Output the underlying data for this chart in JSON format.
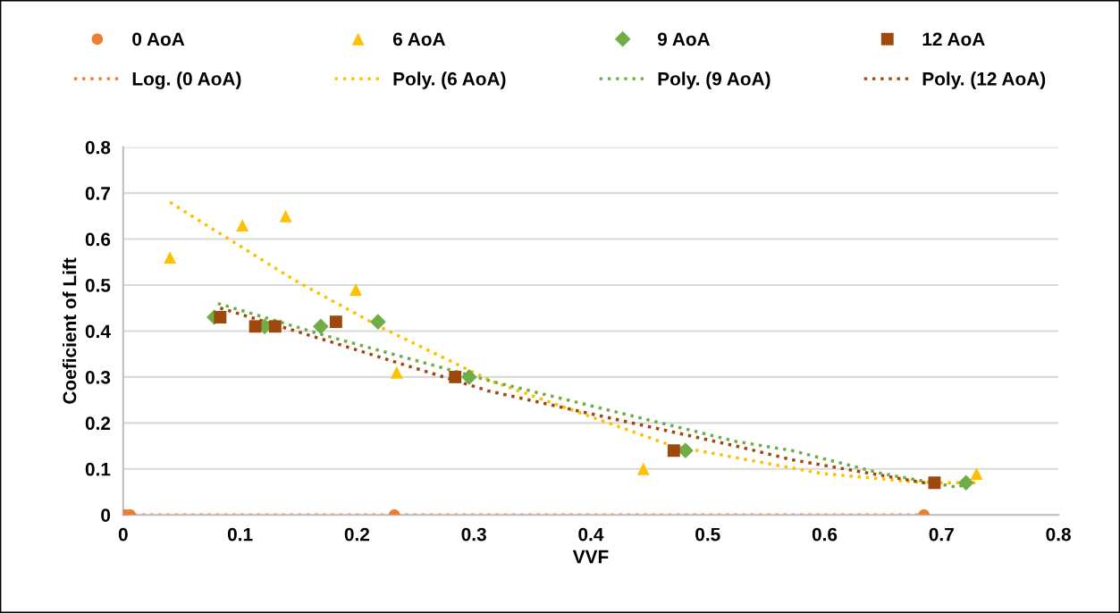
{
  "chart_data": {
    "type": "scatter",
    "xlabel": "VVF",
    "ylabel": "Coeficient of Lift",
    "xlim": [
      0,
      0.8
    ],
    "xticks": [
      {
        "value": 0,
        "label": "0"
      },
      0.1,
      0.2,
      0.3,
      0.4,
      0.5,
      0.6,
      0.7,
      0.8
    ],
    "ylim": [
      0,
      0.8
    ],
    "yticks": [
      {
        "value": 0,
        "label": "0"
      },
      0.1,
      0.2,
      0.3,
      0.4,
      0.5,
      0.6,
      0.7,
      0.8
    ],
    "grid": "y",
    "legend": "top",
    "series": [
      {
        "name": "0 AoA",
        "color": "#ed7d31",
        "marker": "circle",
        "x": [
          0,
          0.002,
          0.006,
          0.232,
          0.685
        ],
        "values": [
          0,
          0,
          0,
          0,
          0
        ]
      },
      {
        "name": "6 AoA",
        "color": "#ffc000",
        "marker": "triangle",
        "x": [
          0.04,
          0.102,
          0.139,
          0.199,
          0.234,
          0.445,
          0.73
        ],
        "values": [
          0.56,
          0.63,
          0.65,
          0.49,
          0.31,
          0.1,
          0.09
        ]
      },
      {
        "name": "9 AoA",
        "color": "#70ad47",
        "marker": "diamond",
        "x": [
          0.078,
          0.121,
          0.169,
          0.218,
          0.296,
          0.481,
          0.721
        ],
        "values": [
          0.43,
          0.41,
          0.41,
          0.42,
          0.3,
          0.14,
          0.07
        ]
      },
      {
        "name": "12 AoA",
        "color": "#9e480e",
        "marker": "square",
        "x": [
          0.083,
          0.113,
          0.13,
          0.182,
          0.284,
          0.471,
          0.694
        ],
        "values": [
          0.43,
          0.41,
          0.41,
          0.42,
          0.3,
          0.14,
          0.07
        ]
      },
      {
        "name": "Log. (0 AoA)",
        "type": "line",
        "line_style": "dotted",
        "marker": "none",
        "color": "#ed7d31",
        "x": [
          0.002,
          0.685
        ],
        "values": [
          0,
          0
        ]
      },
      {
        "name": "Poly. (6 AoA)",
        "type": "line",
        "line_style": "dotted",
        "marker": "none",
        "color": "#ffc000",
        "x": [
          0.04,
          0.147,
          0.219,
          0.316,
          0.393,
          0.47,
          0.598,
          0.685,
          0.729
        ],
        "values": [
          0.68,
          0.51,
          0.41,
          0.29,
          0.22,
          0.15,
          0.09,
          0.07,
          0.07
        ]
      },
      {
        "name": "Poly. (9 AoA)",
        "type": "line",
        "line_style": "dotted",
        "marker": "none",
        "color": "#70ad47",
        "x": [
          0.081,
          0.173,
          0.316,
          0.396,
          0.524,
          0.572,
          0.649,
          0.714,
          0.722
        ],
        "values": [
          0.46,
          0.39,
          0.29,
          0.24,
          0.16,
          0.14,
          0.09,
          0.06,
          0.07
        ]
      },
      {
        "name": "Poly. (12 AoA)",
        "type": "line",
        "line_style": "dotted",
        "marker": "none",
        "color": "#9e480e",
        "x": [
          0.083,
          0.173,
          0.312,
          0.524,
          0.572,
          0.685,
          0.694
        ],
        "values": [
          0.45,
          0.38,
          0.27,
          0.15,
          0.12,
          0.07,
          0.07
        ]
      }
    ]
  }
}
